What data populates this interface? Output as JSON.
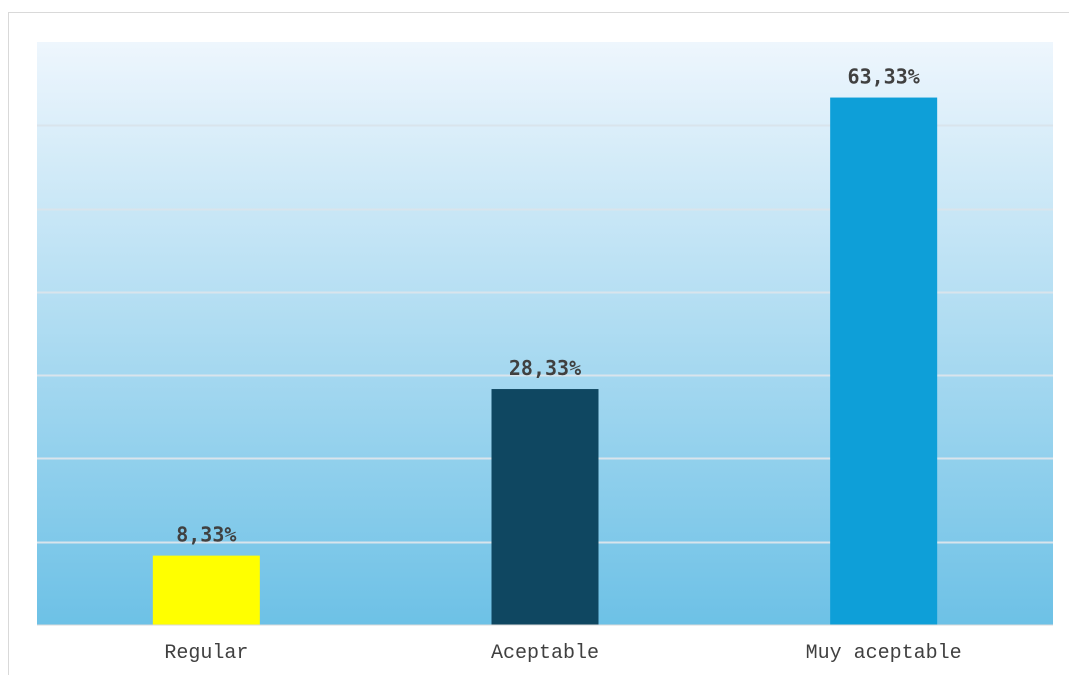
{
  "chart_data": {
    "type": "bar",
    "categories": [
      "Regular",
      "Aceptable",
      "Muy aceptable"
    ],
    "values": [
      8.33,
      28.33,
      63.33
    ],
    "data_labels": [
      "8,33%",
      "28,33%",
      "63,33%"
    ],
    "bar_colors": [
      "#ffff00",
      "#0f4761",
      "#0e9fd8"
    ],
    "ylim": [
      0,
      70
    ],
    "grid": true,
    "legend": "none",
    "title": "",
    "xlabel": "",
    "ylabel": ""
  },
  "colors": {
    "plot_background_top": "#eef6fd",
    "plot_background_bottom": "#6dc1e6",
    "gridline": "#d9e4ec",
    "axis": "#d9d9d9",
    "text": "#404040"
  }
}
